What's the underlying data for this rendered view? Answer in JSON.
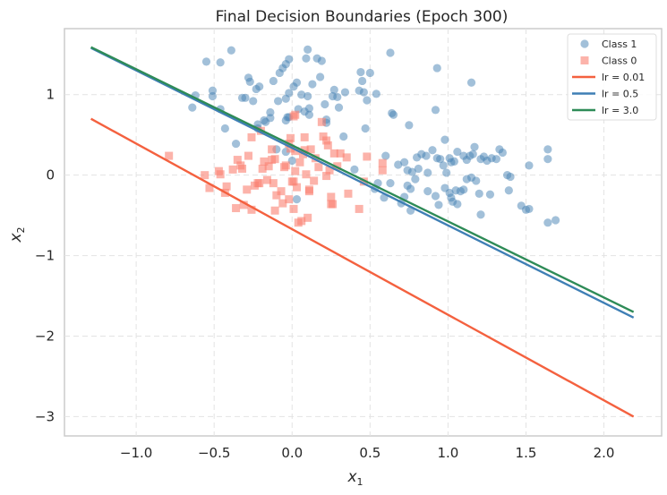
{
  "chart_data": {
    "type": "scatter",
    "title": "Final Decision Boundaries (Epoch 300)",
    "xlabel": "x",
    "xlabel_sub": "1",
    "ylabel": "x",
    "ylabel_sub": "2",
    "xlim": [
      -1.46,
      2.37
    ],
    "ylim": [
      -3.24,
      1.82
    ],
    "xticks": [
      -1.0,
      -0.5,
      0.0,
      0.5,
      1.0,
      1.5,
      2.0
    ],
    "xtick_labels": [
      "−1.0",
      "−0.5",
      "0.0",
      "0.5",
      "1.0",
      "1.5",
      "2.0"
    ],
    "yticks": [
      1,
      0,
      -1,
      -2,
      -3
    ],
    "ytick_labels": [
      "1",
      "0",
      "−1",
      "−2",
      "−3"
    ],
    "grid": true,
    "legend_position": "top-right",
    "colors": {
      "class1": "#4682b4",
      "class0": "#fa8072",
      "lr_0_01": "#f4613f",
      "lr_0_5": "#3f7fb5",
      "lr_3_0": "#2e8b57"
    },
    "legend": [
      {
        "label": "Class 1",
        "kind": "circle",
        "color_key": "class1"
      },
      {
        "label": "Class 0",
        "kind": "square",
        "color_key": "class0"
      },
      {
        "label": "lr = 0.01",
        "kind": "line",
        "color_key": "lr_0_01"
      },
      {
        "label": "lr = 0.5",
        "kind": "line",
        "color_key": "lr_0_5"
      },
      {
        "label": "lr = 3.0",
        "kind": "line",
        "color_key": "lr_3_0"
      }
    ],
    "lines": [
      {
        "name": "lr = 0.01",
        "color_key": "lr_0_01",
        "x": [
          -1.29,
          2.19
        ],
        "y": [
          0.7,
          -3.0
        ]
      },
      {
        "name": "lr = 0.5",
        "color_key": "lr_0_5",
        "x": [
          -1.29,
          2.19
        ],
        "y": [
          1.58,
          -1.77
        ]
      },
      {
        "name": "lr = 3.0",
        "color_key": "lr_3_0",
        "x": [
          -1.29,
          2.19
        ],
        "y": [
          1.59,
          -1.7
        ]
      }
    ],
    "series": [
      {
        "name": "Class 1",
        "marker": "circle",
        "color_key": "class1",
        "points": [
          [
            -0.55,
            1.41
          ],
          [
            -0.46,
            1.4
          ],
          [
            -0.39,
            1.55
          ],
          [
            -0.28,
            1.21
          ],
          [
            -0.27,
            1.16
          ],
          [
            -0.3,
            0.96
          ],
          [
            -0.32,
            0.96
          ],
          [
            -0.51,
            0.98
          ],
          [
            -0.62,
            0.99
          ],
          [
            -0.64,
            0.84
          ],
          [
            -0.46,
            0.82
          ],
          [
            -0.43,
            0.58
          ],
          [
            -0.51,
            1.05
          ],
          [
            -0.36,
            0.39
          ],
          [
            -0.23,
            1.07
          ],
          [
            -0.21,
            1.1
          ],
          [
            -0.25,
            0.92
          ],
          [
            -0.22,
            0.58
          ],
          [
            -0.18,
            0.68
          ],
          [
            -0.14,
            0.78
          ],
          [
            -0.14,
            0.71
          ],
          [
            -0.17,
            0.66
          ],
          [
            -0.22,
            0.63
          ],
          [
            -0.09,
            0.92
          ],
          [
            -0.12,
            1.17
          ],
          [
            -0.08,
            1.27
          ],
          [
            -0.06,
            1.33
          ],
          [
            -0.04,
            1.38
          ],
          [
            -0.02,
            1.44
          ],
          [
            0.01,
            1.1
          ],
          [
            0.03,
            1.15
          ],
          [
            -0.02,
            1.02
          ],
          [
            -0.04,
            0.95
          ],
          [
            -0.03,
            0.72
          ],
          [
            -0.04,
            0.68
          ],
          [
            -0.02,
            0.72
          ],
          [
            0.04,
            0.82
          ],
          [
            0.06,
            1.0
          ],
          [
            0.1,
            0.98
          ],
          [
            0.08,
            0.79
          ],
          [
            0.11,
            0.75
          ],
          [
            0.11,
            0.83
          ],
          [
            0.13,
            1.13
          ],
          [
            0.09,
            1.45
          ],
          [
            0.1,
            1.56
          ],
          [
            0.16,
            1.45
          ],
          [
            0.19,
            1.42
          ],
          [
            0.18,
            1.22
          ],
          [
            0.21,
            0.88
          ],
          [
            0.22,
            0.69
          ],
          [
            0.26,
            0.98
          ],
          [
            0.27,
            1.06
          ],
          [
            0.29,
            0.97
          ],
          [
            0.3,
            0.84
          ],
          [
            0.34,
            1.03
          ],
          [
            0.33,
            0.48
          ],
          [
            0.43,
            1.05
          ],
          [
            0.44,
            1.28
          ],
          [
            0.45,
            1.17
          ],
          [
            0.46,
            1.03
          ],
          [
            0.48,
            0.93
          ],
          [
            0.5,
            1.27
          ],
          [
            0.54,
            1.01
          ],
          [
            0.47,
            0.58
          ],
          [
            0.63,
            1.52
          ],
          [
            0.64,
            0.77
          ],
          [
            0.65,
            0.75
          ],
          [
            0.6,
            0.24
          ],
          [
            0.75,
            0.62
          ],
          [
            0.8,
            0.22
          ],
          [
            0.83,
            0.26
          ],
          [
            0.86,
            0.24
          ],
          [
            0.9,
            0.31
          ],
          [
            0.93,
            0.21
          ],
          [
            0.92,
            0.81
          ],
          [
            0.93,
            1.33
          ],
          [
            0.98,
            0.44
          ],
          [
            0.95,
            0.2
          ],
          [
            0.97,
            0.12
          ],
          [
            0.99,
            0.03
          ],
          [
            1.01,
            0.21
          ],
          [
            1.02,
            0.16
          ],
          [
            1.04,
            0.17
          ],
          [
            1.06,
            0.29
          ],
          [
            1.1,
            0.24
          ],
          [
            1.12,
            0.19
          ],
          [
            1.14,
            0.24
          ],
          [
            1.16,
            0.26
          ],
          [
            1.15,
            1.15
          ],
          [
            1.17,
            0.35
          ],
          [
            1.21,
            0.2
          ],
          [
            1.23,
            0.23
          ],
          [
            1.25,
            0.18
          ],
          [
            1.28,
            0.21
          ],
          [
            1.31,
            0.2
          ],
          [
            1.33,
            0.32
          ],
          [
            1.35,
            0.28
          ],
          [
            1.38,
            0.0
          ],
          [
            1.4,
            -0.02
          ],
          [
            1.39,
            -0.19
          ],
          [
            1.52,
            0.12
          ],
          [
            1.64,
            0.32
          ],
          [
            1.64,
            0.2
          ],
          [
            0.68,
            0.13
          ],
          [
            0.72,
            0.16
          ],
          [
            0.74,
            0.06
          ],
          [
            0.77,
            0.04
          ],
          [
            0.79,
            -0.05
          ],
          [
            0.81,
            0.08
          ],
          [
            0.87,
            0.03
          ],
          [
            0.74,
            -0.13
          ],
          [
            0.76,
            -0.17
          ],
          [
            0.72,
            -0.27
          ],
          [
            0.7,
            -0.35
          ],
          [
            0.76,
            -0.44
          ],
          [
            0.87,
            -0.2
          ],
          [
            0.92,
            -0.26
          ],
          [
            0.94,
            -0.37
          ],
          [
            0.98,
            -0.16
          ],
          [
            1.01,
            -0.22
          ],
          [
            1.02,
            -0.28
          ],
          [
            1.03,
            -0.33
          ],
          [
            1.05,
            -0.19
          ],
          [
            1.06,
            -0.36
          ],
          [
            1.08,
            -0.2
          ],
          [
            1.1,
            -0.18
          ],
          [
            1.12,
            -0.05
          ],
          [
            1.15,
            -0.03
          ],
          [
            1.18,
            -0.07
          ],
          [
            1.2,
            -0.23
          ],
          [
            1.21,
            -0.49
          ],
          [
            1.27,
            -0.24
          ],
          [
            1.5,
            -0.43
          ],
          [
            1.47,
            -0.38
          ],
          [
            1.52,
            -0.42
          ],
          [
            1.64,
            -0.59
          ],
          [
            1.69,
            -0.56
          ],
          [
            0.59,
            -0.28
          ],
          [
            0.63,
            -0.1
          ],
          [
            0.53,
            -0.17
          ],
          [
            0.4,
            0.07
          ],
          [
            0.22,
            0.65
          ],
          [
            -0.1,
            0.32
          ],
          [
            -0.04,
            0.29
          ],
          [
            0.0,
            0.18
          ],
          [
            0.03,
            -0.3
          ],
          [
            0.55,
            -0.1
          ]
        ]
      },
      {
        "name": "Class 0",
        "marker": "square",
        "color_key": "class0",
        "points": [
          [
            -0.79,
            0.24
          ],
          [
            -0.56,
            0.0
          ],
          [
            -0.53,
            -0.16
          ],
          [
            -0.47,
            0.05
          ],
          [
            -0.46,
            0.01
          ],
          [
            -0.43,
            -0.22
          ],
          [
            -0.42,
            -0.14
          ],
          [
            -0.38,
            0.07
          ],
          [
            -0.35,
            0.19
          ],
          [
            -0.33,
            0.12
          ],
          [
            -0.32,
            0.08
          ],
          [
            -0.31,
            -0.37
          ],
          [
            -0.29,
            -0.18
          ],
          [
            -0.28,
            0.24
          ],
          [
            -0.26,
            0.47
          ],
          [
            -0.26,
            -0.43
          ],
          [
            -0.36,
            -0.41
          ],
          [
            -0.24,
            -0.13
          ],
          [
            -0.22,
            -0.1
          ],
          [
            -0.21,
            -0.1
          ],
          [
            -0.19,
            0.08
          ],
          [
            -0.2,
            0.55
          ],
          [
            -0.18,
            0.17
          ],
          [
            -0.16,
            -0.06
          ],
          [
            -0.15,
            0.11
          ],
          [
            -0.13,
            0.19
          ],
          [
            -0.13,
            0.32
          ],
          [
            -0.12,
            -0.1
          ],
          [
            -0.1,
            -0.25
          ],
          [
            -0.11,
            -0.44
          ],
          [
            -0.07,
            -0.2
          ],
          [
            -0.05,
            0.1
          ],
          [
            -0.04,
            0.12
          ],
          [
            -0.02,
            0.39
          ],
          [
            -0.01,
            0.46
          ],
          [
            -0.01,
            0.33
          ],
          [
            0.0,
            -0.08
          ],
          [
            0.01,
            -0.08
          ],
          [
            0.02,
            0.3
          ],
          [
            0.02,
            0.75
          ],
          [
            0.01,
            0.73
          ],
          [
            0.03,
            -0.15
          ],
          [
            0.01,
            -0.42
          ],
          [
            0.04,
            -0.59
          ],
          [
            0.06,
            -0.57
          ],
          [
            0.07,
            0.26
          ],
          [
            0.08,
            0.31
          ],
          [
            0.08,
            0.47
          ],
          [
            0.09,
            0.01
          ],
          [
            0.11,
            -0.18
          ],
          [
            0.1,
            -0.53
          ],
          [
            0.11,
            -0.2
          ],
          [
            0.12,
            0.32
          ],
          [
            0.14,
            -0.07
          ],
          [
            0.15,
            0.21
          ],
          [
            0.17,
            0.1
          ],
          [
            0.19,
            0.66
          ],
          [
            0.2,
            0.48
          ],
          [
            0.22,
            -0.01
          ],
          [
            0.22,
            0.43
          ],
          [
            0.23,
            0.37
          ],
          [
            0.24,
            0.06
          ],
          [
            0.25,
            -0.27
          ],
          [
            0.25,
            -0.36
          ],
          [
            0.26,
            -0.36
          ],
          [
            0.27,
            0.27
          ],
          [
            0.29,
            0.11
          ],
          [
            0.31,
            0.27
          ],
          [
            0.35,
            0.22
          ],
          [
            0.36,
            -0.23
          ],
          [
            0.43,
            -0.42
          ],
          [
            0.46,
            -0.08
          ],
          [
            0.48,
            0.23
          ],
          [
            0.58,
            0.15
          ],
          [
            0.58,
            0.06
          ],
          [
            -0.06,
            -0.35
          ],
          [
            -0.11,
            0.2
          ],
          [
            0.02,
            0.05
          ],
          [
            -0.02,
            -0.3
          ],
          [
            0.05,
            0.16
          ]
        ]
      }
    ]
  }
}
